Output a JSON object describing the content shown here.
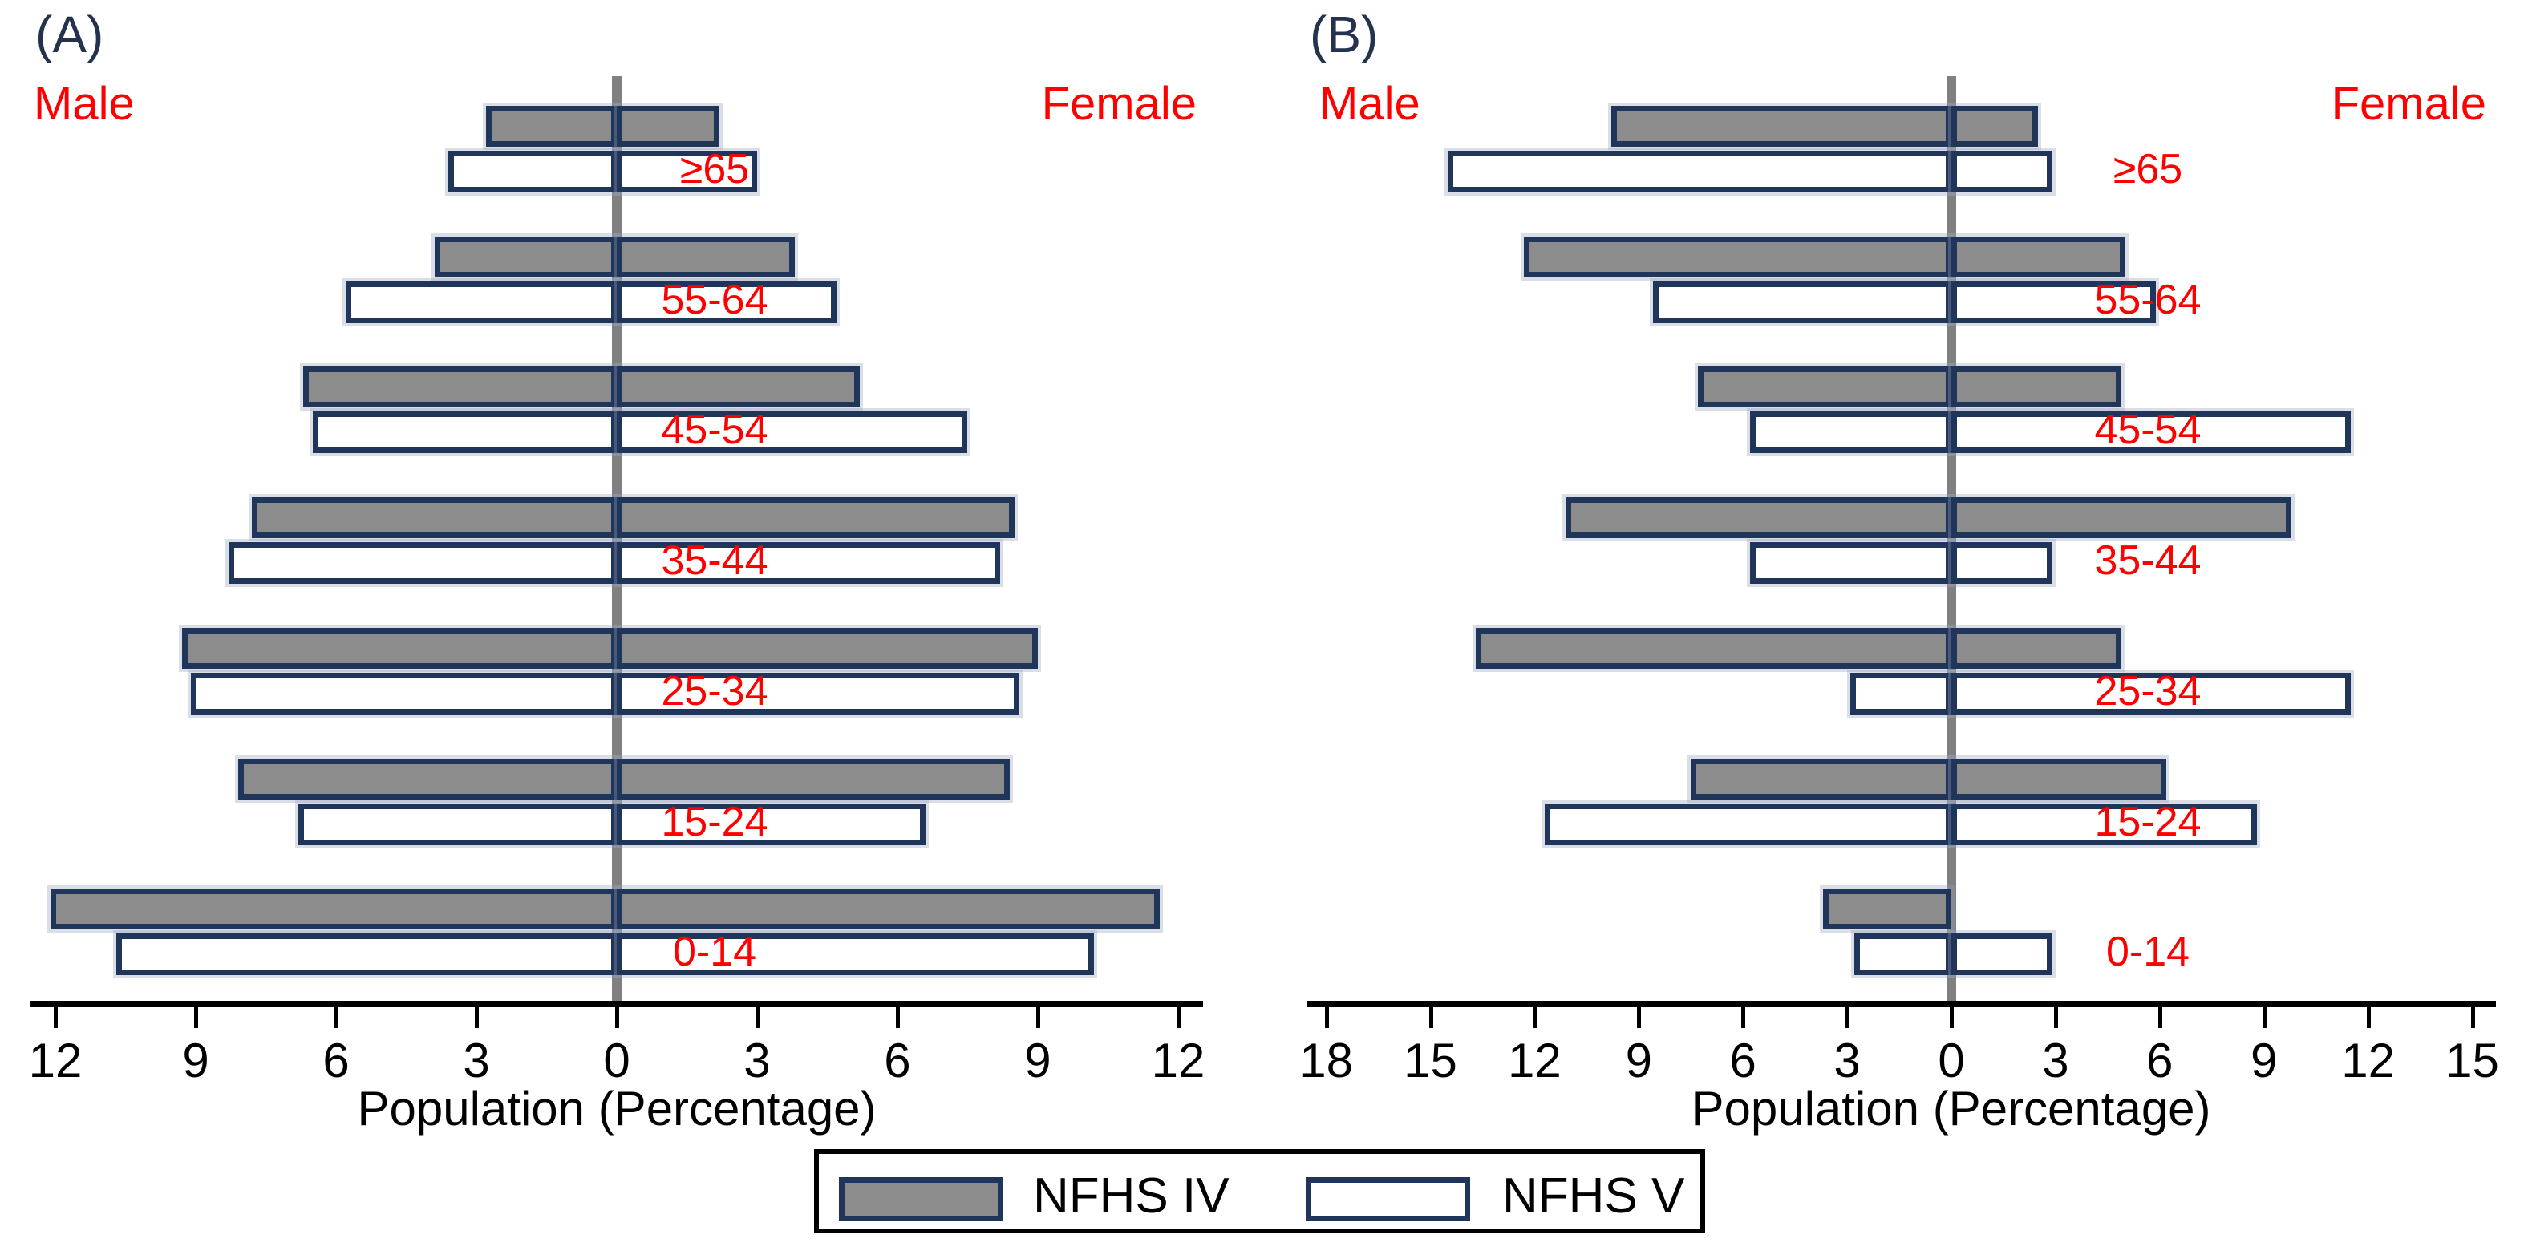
{
  "chart_data": [
    {
      "type": "bar",
      "subtype": "population_pyramid",
      "panel_label": "(A)",
      "left_header": "Male",
      "right_header": "Female",
      "xlabel": "Population (Percentage)",
      "age_groups_top_to_bottom": [
        "≥65",
        "55-64",
        "45-54",
        "35-44",
        "25-34",
        "15-24",
        "0-14"
      ],
      "axis": {
        "male_max": 12,
        "female_max": 12,
        "tick_step": 3,
        "tick_labels_left_to_right": [
          "12",
          "9",
          "6",
          "3",
          "0",
          "3",
          "6",
          "9",
          "12"
        ]
      },
      "series": [
        {
          "name": "NFHS IV",
          "male": [
            2.8,
            3.9,
            6.7,
            7.8,
            9.3,
            8.1,
            12.1
          ],
          "female": [
            2.2,
            3.8,
            5.2,
            8.5,
            9.0,
            8.4,
            11.6
          ]
        },
        {
          "name": "NFHS V",
          "male": [
            3.6,
            5.8,
            6.5,
            8.3,
            9.1,
            6.8,
            10.7
          ],
          "female": [
            3.0,
            4.7,
            7.5,
            8.2,
            8.6,
            6.6,
            10.2
          ]
        }
      ]
    },
    {
      "type": "bar",
      "subtype": "population_pyramid",
      "panel_label": "(B)",
      "left_header": "Male",
      "right_header": "Female",
      "xlabel": "Population (Percentage)",
      "age_groups_top_to_bottom": [
        "≥65",
        "55-64",
        "45-54",
        "35-44",
        "25-34",
        "15-24",
        "0-14"
      ],
      "axis": {
        "male_max": 18,
        "female_max": 15,
        "tick_step": 3,
        "tick_labels_left_to_right": [
          "18",
          "15",
          "12",
          "9",
          "6",
          "3",
          "0",
          "3",
          "6",
          "9",
          "12",
          "15"
        ]
      },
      "series": [
        {
          "name": "NFHS IV",
          "male": [
            9.8,
            12.3,
            7.3,
            11.1,
            13.7,
            7.5,
            3.7
          ],
          "female": [
            2.5,
            5.0,
            4.9,
            9.8,
            4.9,
            6.2,
            0.0
          ]
        },
        {
          "name": "NFHS V",
          "male": [
            14.5,
            8.6,
            5.8,
            5.8,
            2.9,
            11.7,
            2.8
          ],
          "female": [
            2.9,
            5.9,
            11.5,
            2.9,
            11.5,
            8.8,
            2.9
          ]
        }
      ]
    }
  ],
  "legend": {
    "items": [
      {
        "label": "NFHS IV",
        "fill": "#8c8c8c"
      },
      {
        "label": "NFHS V",
        "fill": "#ffffff"
      }
    ]
  },
  "colors": {
    "nfhs4_fill": "#8c8c8c",
    "nfhs5_fill": "#ffffff",
    "bar_border": "#20355a",
    "red_text": "#ff0000",
    "panel_letter": "#24324e",
    "center_line": "#808080",
    "axis": "#000000"
  }
}
